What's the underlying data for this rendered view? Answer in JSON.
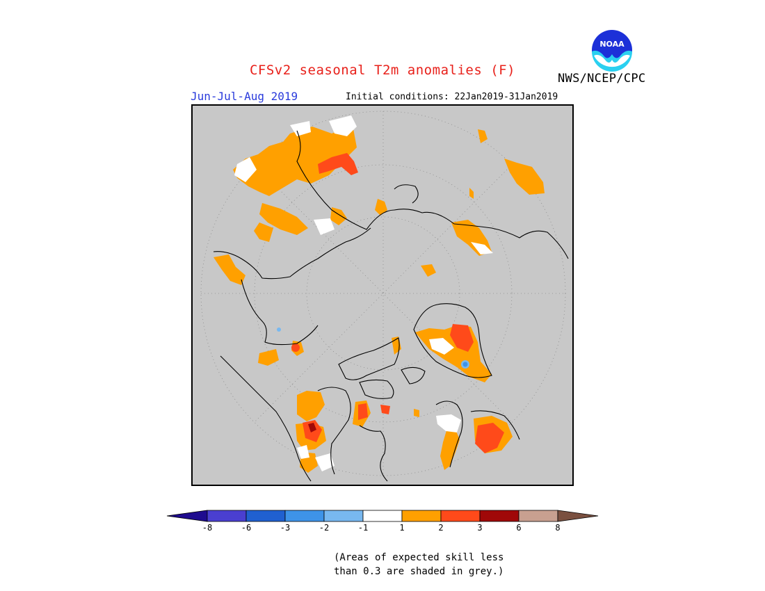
{
  "header": {
    "title": "CFSv2 seasonal T2m anomalies (F)",
    "period": "Jun-Jul-Aug 2019",
    "initial_conditions": "Initial conditions: 22Jan2019-31Jan2019",
    "agency": "NWS/NCEP/CPC",
    "logo_text": "NOAA"
  },
  "map": {
    "projection": "north polar stereographic",
    "background_color": "#c8c8c8",
    "regions": [
      {
        "name": "Siberia / NE Asia",
        "anomaly_class": "1 to 2",
        "color": "#ffa000"
      },
      {
        "name": "Chukotka coast",
        "anomaly_class": "2 to 3",
        "color": "#ff4a1a"
      },
      {
        "name": "Alaska",
        "anomaly_class": "1 to 2",
        "color": "#ffa000"
      },
      {
        "name": "Western Canada",
        "anomaly_class": "2 to 3",
        "color": "#ff4a1a"
      },
      {
        "name": "Greenland",
        "anomaly_class": "2 to 3",
        "color": "#ff4a1a"
      },
      {
        "name": "Greenland interior",
        "anomaly_class": "-3 to -2",
        "color": "#3e93e8"
      },
      {
        "name": "Scandinavia",
        "anomaly_class": "2 to 3",
        "color": "#ff4a1a"
      },
      {
        "name": "Eastern Europe",
        "anomaly_class": "1 to 2",
        "color": "#ffa000"
      }
    ]
  },
  "legend": {
    "colors": [
      "#1f0c8f",
      "#4a3fd0",
      "#2060d0",
      "#3e93e8",
      "#78b8f0",
      "#ffffff",
      "#ffa000",
      "#ff4a1a",
      "#a00808",
      "#c8a090",
      "#7a5040"
    ],
    "tick_labels": [
      "-8",
      "-6",
      "-3",
      "-2",
      "-1",
      "1",
      "2",
      "3",
      "6",
      "8"
    ]
  },
  "note": {
    "line1": "(Areas of expected skill less",
    "line2": "than 0.3 are shaded in grey.)"
  }
}
